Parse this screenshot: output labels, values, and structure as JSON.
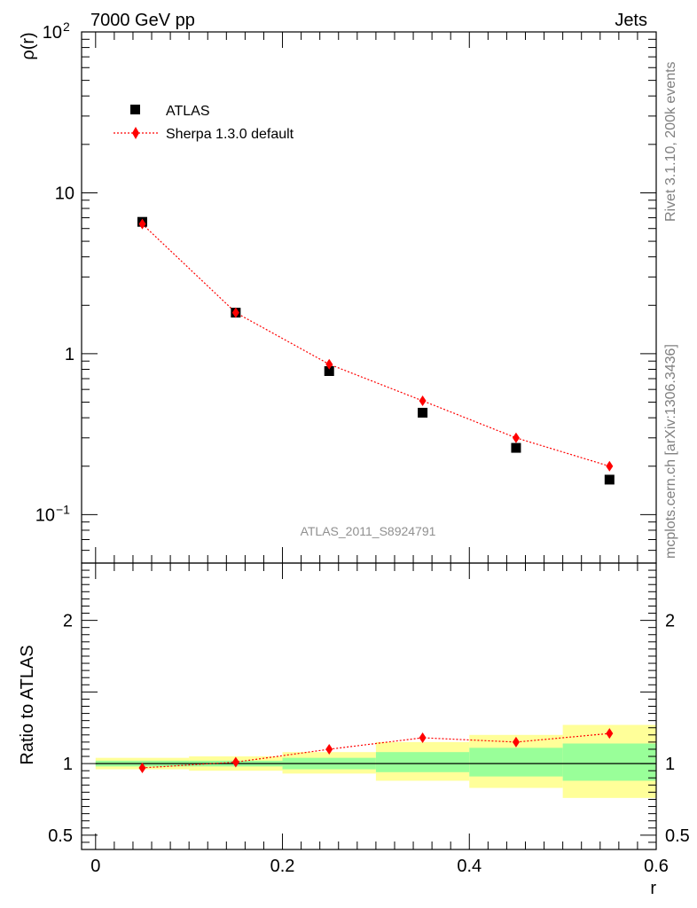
{
  "chart_data": [
    {
      "type": "scatter",
      "title_left": "7000 GeV pp",
      "title_right": "Jets",
      "ylabel": "ρ(r)",
      "yscale": "log",
      "ylim": [
        0.05,
        100
      ],
      "xlim": [
        -0.015,
        0.6
      ],
      "y_tick_labels": [
        "10",
        "1"
      ],
      "y_tick_major_values": [
        0.1,
        1,
        10,
        100
      ],
      "y_tick_label_10e2": {
        "base": "10",
        "exp": "2"
      },
      "y_tick_label_10em1": {
        "base": "10",
        "exp": "−1"
      },
      "analysis_id": "ATLAS_2011_S8924791",
      "legend": [
        {
          "name": "ATLAS",
          "marker": "square",
          "color": "#000000"
        },
        {
          "name": "Sherpa 1.3.0 default",
          "marker": "diamond",
          "color": "#ff0000"
        }
      ],
      "series": [
        {
          "name": "ATLAS",
          "x": [
            0.05,
            0.15,
            0.25,
            0.35,
            0.45,
            0.55
          ],
          "y": [
            6.6,
            1.8,
            0.78,
            0.43,
            0.26,
            0.165
          ]
        },
        {
          "name": "Sherpa 1.3.0 default",
          "x": [
            0.05,
            0.15,
            0.25,
            0.35,
            0.45,
            0.55
          ],
          "y": [
            6.4,
            1.8,
            0.86,
            0.51,
            0.3,
            0.2
          ]
        }
      ]
    },
    {
      "type": "scatter",
      "ylabel": "Ratio to ATLAS",
      "xlabel": "r",
      "ylim": [
        0.4,
        2.4
      ],
      "xlim": [
        -0.015,
        0.6
      ],
      "y_tick_labels": [
        "2",
        "1",
        "0.5"
      ],
      "y_tick_values": [
        2,
        1,
        0.5
      ],
      "x_tick_labels": [
        "0",
        "0.2",
        "0.4",
        "0.6"
      ],
      "x_tick_values": [
        0,
        0.2,
        0.4,
        0.6
      ],
      "bands": [
        {
          "x_lo": 0.0,
          "x_hi": 0.1,
          "inner": [
            0.98,
            1.02
          ],
          "outer": [
            0.96,
            1.04
          ]
        },
        {
          "x_lo": 0.1,
          "x_hi": 0.2,
          "inner": [
            0.98,
            1.02
          ],
          "outer": [
            0.95,
            1.05
          ]
        },
        {
          "x_lo": 0.2,
          "x_hi": 0.3,
          "inner": [
            0.96,
            1.04
          ],
          "outer": [
            0.93,
            1.08
          ]
        },
        {
          "x_lo": 0.3,
          "x_hi": 0.4,
          "inner": [
            0.94,
            1.08
          ],
          "outer": [
            0.88,
            1.15
          ]
        },
        {
          "x_lo": 0.4,
          "x_hi": 0.5,
          "inner": [
            0.91,
            1.11
          ],
          "outer": [
            0.83,
            1.2
          ]
        },
        {
          "x_lo": 0.5,
          "x_hi": 0.6,
          "inner": [
            0.88,
            1.14
          ],
          "outer": [
            0.76,
            1.27
          ]
        }
      ],
      "band_colors": {
        "inner": "#99ff99",
        "outer": "#ffff99"
      },
      "series": [
        {
          "name": "Sherpa 1.3.0 default",
          "x": [
            0.05,
            0.15,
            0.25,
            0.35,
            0.45,
            0.55
          ],
          "y": [
            0.97,
            1.01,
            1.1,
            1.18,
            1.15,
            1.21
          ],
          "err": [
            0.012,
            0.025,
            0.03,
            0.03,
            0.03,
            0.03
          ]
        }
      ]
    }
  ],
  "side_text": {
    "rivet": "Rivet 3.1.10,  200k events",
    "mcplots": "mcplots.cern.ch [arXiv:1306.3436]"
  }
}
